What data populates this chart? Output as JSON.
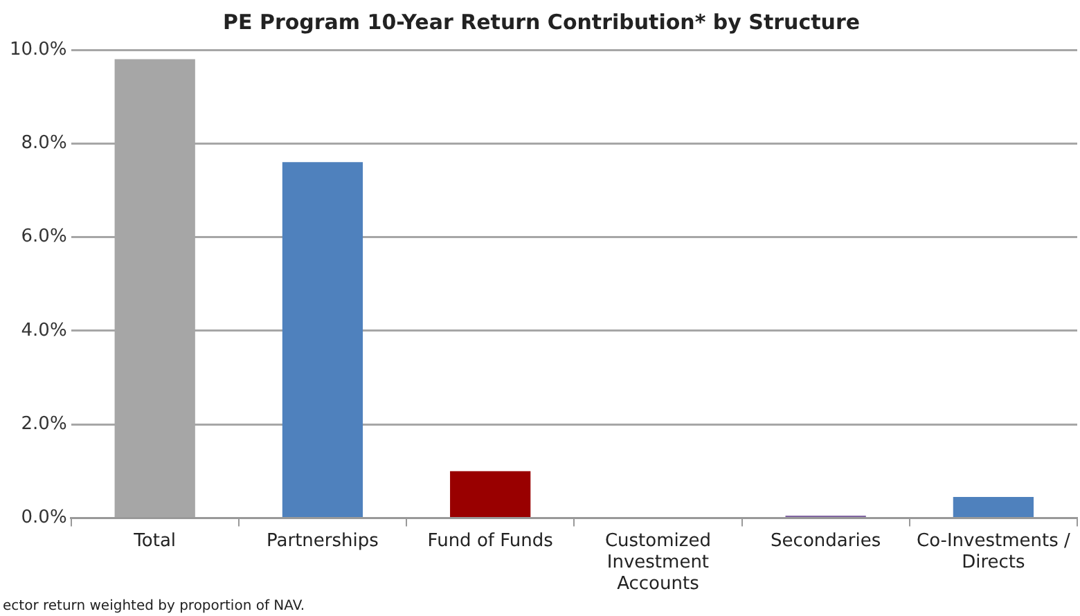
{
  "chart_data": {
    "type": "bar",
    "title": "PE Program 10-Year Return Contribution* by Structure",
    "categories": [
      "Total",
      "Partnerships",
      "Fund of Funds",
      "Customized Investment Accounts",
      "Secondaries",
      "Co-Investments / Directs"
    ],
    "values": [
      9.8,
      7.6,
      1.0,
      0,
      0.05,
      0.45
    ],
    "colors": [
      "#a6a6a6",
      "#4f81bd",
      "#990000",
      "#4f81bd",
      "#8064a2",
      "#4f81bd"
    ],
    "ylim": [
      0,
      10
    ],
    "yticks": [
      {
        "value": 0,
        "label": "0.0%"
      },
      {
        "value": 2,
        "label": "2.0%"
      },
      {
        "value": 4,
        "label": "4.0%"
      },
      {
        "value": 6,
        "label": "6.0%"
      },
      {
        "value": 8,
        "label": "8.0%"
      },
      {
        "value": 10,
        "label": "10.0%"
      }
    ],
    "grid": "y",
    "legend": false,
    "annotations": [
      "ector return weighted by proportion of NAV."
    ]
  }
}
